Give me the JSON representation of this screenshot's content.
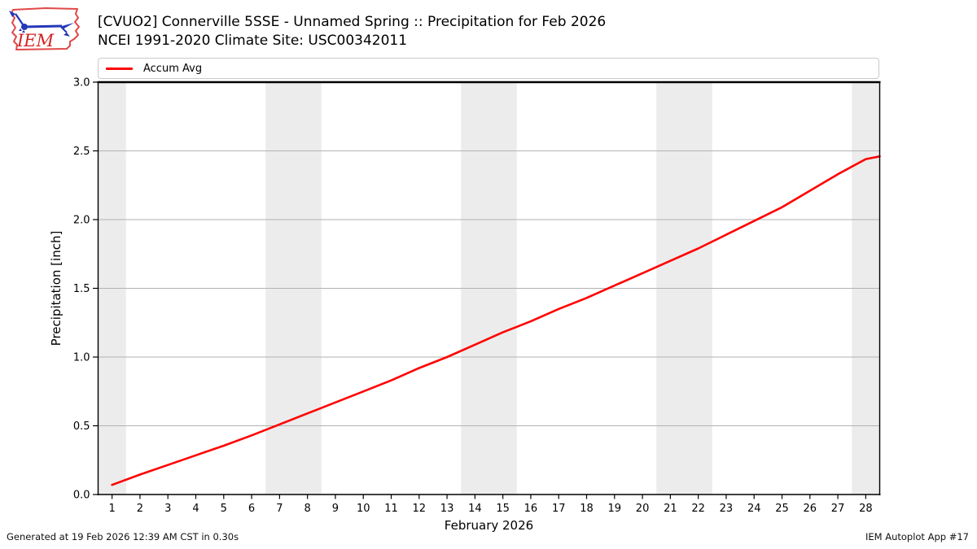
{
  "header": {
    "title_line1": "[CVUO2] Connerville 5SSE - Unnamed Spring :: Precipitation for Feb 2026",
    "title_line2": "NCEI 1991-2020 Climate Site: USC00342011",
    "logo_text": "IEM"
  },
  "legend": {
    "items": [
      {
        "label": "Accum Avg",
        "color": "#ff0000"
      }
    ]
  },
  "chart_data": {
    "type": "line",
    "title": "[CVUO2] Connerville 5SSE - Unnamed Spring :: Precipitation for Feb 2026",
    "subtitle": "NCEI 1991-2020 Climate Site: USC00342011",
    "xlabel": "February 2026",
    "ylabel": "Precipitation [inch]",
    "xlim": [
      0.5,
      28.5
    ],
    "ylim": [
      0,
      3
    ],
    "x_ticks": [
      1,
      2,
      3,
      4,
      5,
      6,
      7,
      8,
      9,
      10,
      11,
      12,
      13,
      14,
      15,
      16,
      17,
      18,
      19,
      20,
      21,
      22,
      23,
      24,
      25,
      26,
      27,
      28
    ],
    "y_ticks": [
      0.0,
      0.5,
      1.0,
      1.5,
      2.0,
      2.5,
      3.0
    ],
    "grid": "horizontal",
    "grid_color": "#b2b2b2",
    "band_color": "#ececec",
    "weekend_bands": [
      [
        0.5,
        1.5
      ],
      [
        6.5,
        8.5
      ],
      [
        13.5,
        15.5
      ],
      [
        20.5,
        22.5
      ],
      [
        27.5,
        28.5
      ]
    ],
    "legend_position": "top",
    "series": [
      {
        "name": "Accum Avg",
        "color": "#ff0000",
        "x": [
          1,
          2,
          3,
          4,
          5,
          6,
          7,
          8,
          9,
          10,
          11,
          12,
          13,
          14,
          15,
          16,
          17,
          18,
          19,
          20,
          21,
          22,
          23,
          24,
          25,
          26,
          27,
          28,
          28.5
        ],
        "y": [
          0.07,
          0.145,
          0.215,
          0.285,
          0.355,
          0.43,
          0.51,
          0.59,
          0.67,
          0.75,
          0.83,
          0.92,
          1.0,
          1.09,
          1.18,
          1.26,
          1.35,
          1.43,
          1.52,
          1.61,
          1.7,
          1.79,
          1.89,
          1.99,
          2.09,
          2.21,
          2.33,
          2.44,
          2.46
        ]
      }
    ]
  },
  "footer": {
    "left": "Generated at 19 Feb 2026 12:39 AM CST in 0.30s",
    "right": "IEM Autoplot App #17"
  }
}
